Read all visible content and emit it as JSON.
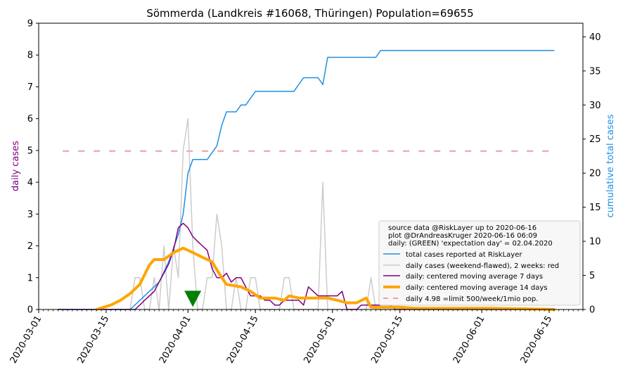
{
  "chart_data": {
    "type": "line",
    "title": "Sömmerda (Landkreis #16068, Thüringen) Population=69655",
    "ylabel_left": "daily cases",
    "ylabel_right": "cumulative total cases",
    "ylim_left": [
      0,
      9
    ],
    "ylim_right": [
      0,
      42
    ],
    "xlim": [
      "2020-03-01",
      "2020-06-22"
    ],
    "left_ticks": [
      0,
      1,
      2,
      3,
      4,
      5,
      6,
      7,
      8,
      9
    ],
    "right_ticks": [
      0,
      5,
      10,
      15,
      20,
      25,
      30,
      35,
      40
    ],
    "x_ticks": [
      "2020-03-01",
      "2020-03-15",
      "2020-04-01",
      "2020-04-15",
      "2020-05-01",
      "2020-05-15",
      "2020-06-01",
      "2020-06-15"
    ],
    "grid": false,
    "legend_position": "lower-right",
    "legend_title": [
      "source data @RiskLayer up to 2020-06-16",
      "plot @DrAndreasKruger 2020-06-16 06:09",
      "daily: (GREEN) 'expectation day' = 02.04.2020"
    ],
    "expectation_day": {
      "date": "2020-04-02",
      "y": 0.3,
      "color": "#008000"
    },
    "series": [
      {
        "name": "total cases reported at RiskLayer",
        "axis": "right",
        "color": "#1f8fe6",
        "width": 1.5,
        "points": [
          [
            "2020-03-05",
            0
          ],
          [
            "2020-03-20",
            0
          ],
          [
            "2020-03-26",
            4
          ],
          [
            "2020-03-28",
            7
          ],
          [
            "2020-03-29",
            9
          ],
          [
            "2020-03-30",
            11
          ],
          [
            "2020-03-31",
            14
          ],
          [
            "2020-04-01",
            20
          ],
          [
            "2020-04-02",
            22
          ],
          [
            "2020-04-03",
            22
          ],
          [
            "2020-04-05",
            22
          ],
          [
            "2020-04-07",
            24
          ],
          [
            "2020-04-08",
            27
          ],
          [
            "2020-04-09",
            29
          ],
          [
            "2020-04-11",
            29
          ],
          [
            "2020-04-12",
            30
          ],
          [
            "2020-04-13",
            30
          ],
          [
            "2020-04-15",
            32
          ],
          [
            "2020-04-23",
            32
          ],
          [
            "2020-04-25",
            34
          ],
          [
            "2020-04-28",
            34
          ],
          [
            "2020-04-29",
            33
          ],
          [
            "2020-04-30",
            37
          ],
          [
            "2020-05-10",
            37
          ],
          [
            "2020-05-11",
            38
          ],
          [
            "2020-06-16",
            38
          ]
        ]
      },
      {
        "name": "daily cases (weekend-flawed), 2 weeks: red",
        "axis": "left",
        "color": "#cccccc",
        "width": 1.5,
        "points": [
          [
            "2020-03-05",
            0
          ],
          [
            "2020-03-20",
            0
          ],
          [
            "2020-03-21",
            1
          ],
          [
            "2020-03-22",
            1
          ],
          [
            "2020-03-23",
            0
          ],
          [
            "2020-03-24",
            0
          ],
          [
            "2020-03-25",
            1
          ],
          [
            "2020-03-26",
            0
          ],
          [
            "2020-03-27",
            2
          ],
          [
            "2020-03-28",
            0
          ],
          [
            "2020-03-29",
            2
          ],
          [
            "2020-03-30",
            1
          ],
          [
            "2020-03-31",
            5
          ],
          [
            "2020-04-01",
            6
          ],
          [
            "2020-04-02",
            2
          ],
          [
            "2020-04-03",
            0
          ],
          [
            "2020-04-04",
            0
          ],
          [
            "2020-04-05",
            1
          ],
          [
            "2020-04-06",
            1
          ],
          [
            "2020-04-07",
            3
          ],
          [
            "2020-04-08",
            2
          ],
          [
            "2020-04-09",
            0
          ],
          [
            "2020-04-10",
            0
          ],
          [
            "2020-04-11",
            1
          ],
          [
            "2020-04-12",
            0
          ],
          [
            "2020-04-13",
            0
          ],
          [
            "2020-04-14",
            1
          ],
          [
            "2020-04-15",
            1
          ],
          [
            "2020-04-16",
            0
          ],
          [
            "2020-04-17",
            0
          ],
          [
            "2020-04-18",
            0
          ],
          [
            "2020-04-19",
            0
          ],
          [
            "2020-04-20",
            0
          ],
          [
            "2020-04-21",
            1
          ],
          [
            "2020-04-22",
            1
          ],
          [
            "2020-04-23",
            0
          ],
          [
            "2020-04-24",
            0
          ],
          [
            "2020-04-25",
            0
          ],
          [
            "2020-04-26",
            0
          ],
          [
            "2020-04-27",
            0
          ],
          [
            "2020-04-28",
            0
          ],
          [
            "2020-04-29",
            4
          ],
          [
            "2020-04-30",
            0
          ],
          [
            "2020-05-07",
            0
          ],
          [
            "2020-05-08",
            0
          ],
          [
            "2020-05-09",
            1
          ],
          [
            "2020-05-10",
            0
          ],
          [
            "2020-06-16",
            0
          ]
        ]
      },
      {
        "name": "daily: centered moving average 7 days",
        "axis": "left",
        "color": "#800080",
        "width": 1.5,
        "points": [
          [
            "2020-03-05",
            0
          ],
          [
            "2020-03-21",
            0
          ],
          [
            "2020-03-22",
            0.14
          ],
          [
            "2020-03-23",
            0.29
          ],
          [
            "2020-03-24",
            0.43
          ],
          [
            "2020-03-25",
            0.57
          ],
          [
            "2020-03-26",
            0.86
          ],
          [
            "2020-03-27",
            1.14
          ],
          [
            "2020-03-28",
            1.43
          ],
          [
            "2020-03-29",
            1.86
          ],
          [
            "2020-03-30",
            2.57
          ],
          [
            "2020-03-31",
            2.71
          ],
          [
            "2020-04-01",
            2.57
          ],
          [
            "2020-04-02",
            2.29
          ],
          [
            "2020-04-03",
            2.14
          ],
          [
            "2020-04-04",
            2.0
          ],
          [
            "2020-04-05",
            1.86
          ],
          [
            "2020-04-06",
            1.29
          ],
          [
            "2020-04-07",
            1.0
          ],
          [
            "2020-04-08",
            1.0
          ],
          [
            "2020-04-09",
            1.14
          ],
          [
            "2020-04-10",
            0.86
          ],
          [
            "2020-04-11",
            1.0
          ],
          [
            "2020-04-12",
            1.0
          ],
          [
            "2020-04-13",
            0.71
          ],
          [
            "2020-04-14",
            0.43
          ],
          [
            "2020-04-15",
            0.43
          ],
          [
            "2020-04-16",
            0.43
          ],
          [
            "2020-04-17",
            0.29
          ],
          [
            "2020-04-18",
            0.29
          ],
          [
            "2020-04-19",
            0.14
          ],
          [
            "2020-04-20",
            0.14
          ],
          [
            "2020-04-21",
            0.29
          ],
          [
            "2020-04-22",
            0.29
          ],
          [
            "2020-04-23",
            0.29
          ],
          [
            "2020-04-24",
            0.29
          ],
          [
            "2020-04-25",
            0.14
          ],
          [
            "2020-04-26",
            0.71
          ],
          [
            "2020-04-27",
            0.57
          ],
          [
            "2020-04-28",
            0.43
          ],
          [
            "2020-04-29",
            0.43
          ],
          [
            "2020-04-30",
            0.43
          ],
          [
            "2020-05-01",
            0.43
          ],
          [
            "2020-05-02",
            0.43
          ],
          [
            "2020-05-03",
            0.57
          ],
          [
            "2020-05-04",
            0
          ],
          [
            "2020-05-06",
            0
          ],
          [
            "2020-05-07",
            0.14
          ],
          [
            "2020-05-13",
            0.14
          ],
          [
            "2020-05-14",
            0
          ],
          [
            "2020-06-16",
            0
          ]
        ]
      },
      {
        "name": "daily: centered moving average 14 days",
        "axis": "left",
        "color": "#ffa500",
        "width": 4,
        "points": [
          [
            "2020-03-13",
            0
          ],
          [
            "2020-03-16",
            0.14
          ],
          [
            "2020-03-18",
            0.29
          ],
          [
            "2020-03-20",
            0.5
          ],
          [
            "2020-03-22",
            0.79
          ],
          [
            "2020-03-24",
            1.4
          ],
          [
            "2020-03-25",
            1.57
          ],
          [
            "2020-03-27",
            1.57
          ],
          [
            "2020-03-29",
            1.79
          ],
          [
            "2020-03-31",
            1.93
          ],
          [
            "2020-04-02",
            1.79
          ],
          [
            "2020-04-04",
            1.64
          ],
          [
            "2020-04-06",
            1.5
          ],
          [
            "2020-04-08",
            1.0
          ],
          [
            "2020-04-09",
            0.79
          ],
          [
            "2020-04-12",
            0.71
          ],
          [
            "2020-04-14",
            0.57
          ],
          [
            "2020-04-16",
            0.36
          ],
          [
            "2020-04-19",
            0.36
          ],
          [
            "2020-04-21",
            0.29
          ],
          [
            "2020-04-22",
            0.43
          ],
          [
            "2020-04-24",
            0.36
          ],
          [
            "2020-04-27",
            0.36
          ],
          [
            "2020-04-30",
            0.36
          ],
          [
            "2020-05-02",
            0.29
          ],
          [
            "2020-05-04",
            0.21
          ],
          [
            "2020-05-06",
            0.21
          ],
          [
            "2020-05-08",
            0.36
          ],
          [
            "2020-05-09",
            0.07
          ],
          [
            "2020-05-13",
            0.07
          ],
          [
            "2020-05-15",
            0.07
          ],
          [
            "2020-05-18",
            0.04
          ],
          [
            "2020-06-03",
            0.04
          ],
          [
            "2020-06-10",
            0.02
          ],
          [
            "2020-06-16",
            0
          ]
        ]
      },
      {
        "name": "daily 4.98 =limit 500/week/1mio pop.",
        "axis": "left",
        "color": "#f08080",
        "width": 1.5,
        "dashed": true,
        "points": [
          [
            "2020-03-06",
            4.98
          ],
          [
            "2020-06-16",
            4.98
          ]
        ]
      }
    ]
  }
}
